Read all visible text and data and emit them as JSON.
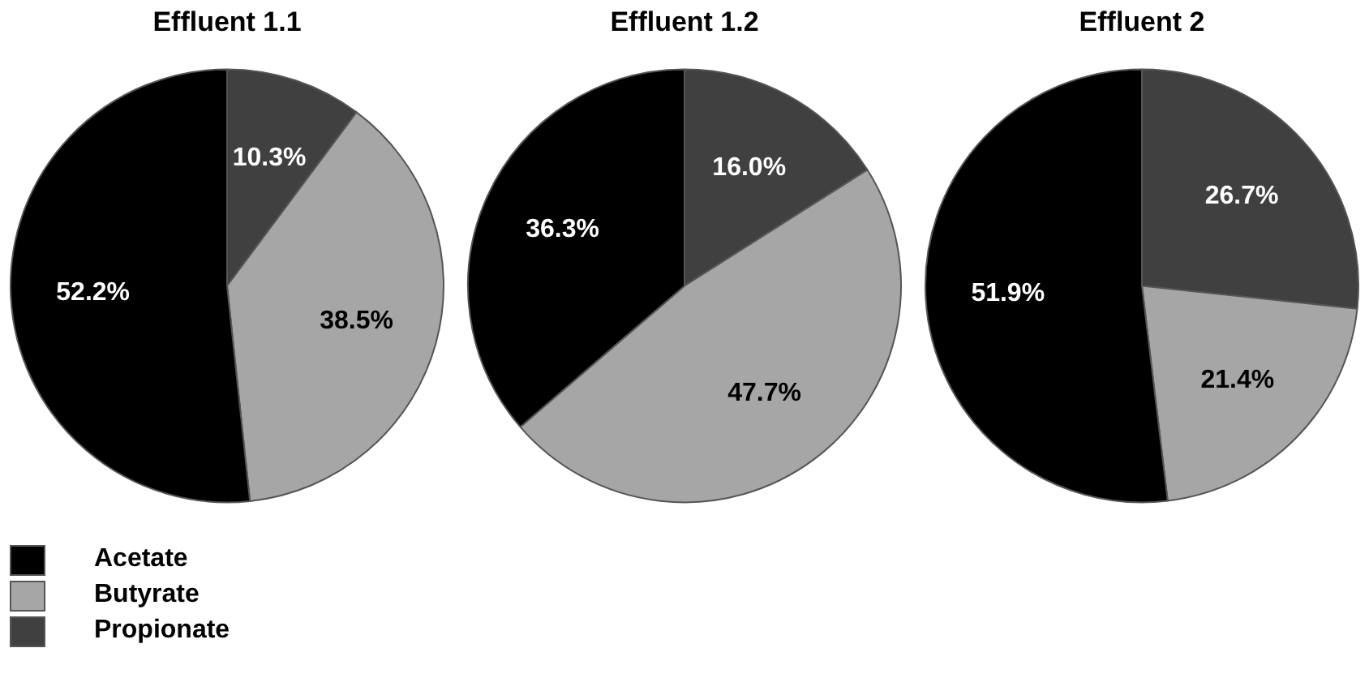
{
  "chart_data": [
    {
      "type": "pie",
      "title": "Effluent 1.1",
      "categories": [
        "Acetate",
        "Butyrate",
        "Propionate"
      ],
      "values": [
        52.2,
        38.5,
        10.3
      ],
      "colors": [
        "#000000",
        "#a6a6a6",
        "#404040"
      ],
      "value_labels": [
        "52.2%",
        "38.5%",
        "10.3%"
      ],
      "legend": "bottom left"
    },
    {
      "type": "pie",
      "title": "Effluent 1.2",
      "categories": [
        null,
        null,
        null
      ],
      "values": [
        36.3,
        47.7,
        16.0
      ],
      "colors": [
        "#000000",
        "#a6a6a6",
        "#404040"
      ],
      "value_labels": [
        "36.3%",
        "47.7%",
        "16.0%"
      ]
    },
    {
      "type": "pie",
      "title": "Effluent 2",
      "categories": [
        null,
        null,
        null
      ],
      "values": [
        51.9,
        21.4,
        26.7
      ],
      "colors": [
        "#000000",
        "#a6a6a6",
        "#404040"
      ],
      "value_labels": [
        "51.9%",
        "21.4%",
        "26.7%"
      ]
    }
  ]
}
